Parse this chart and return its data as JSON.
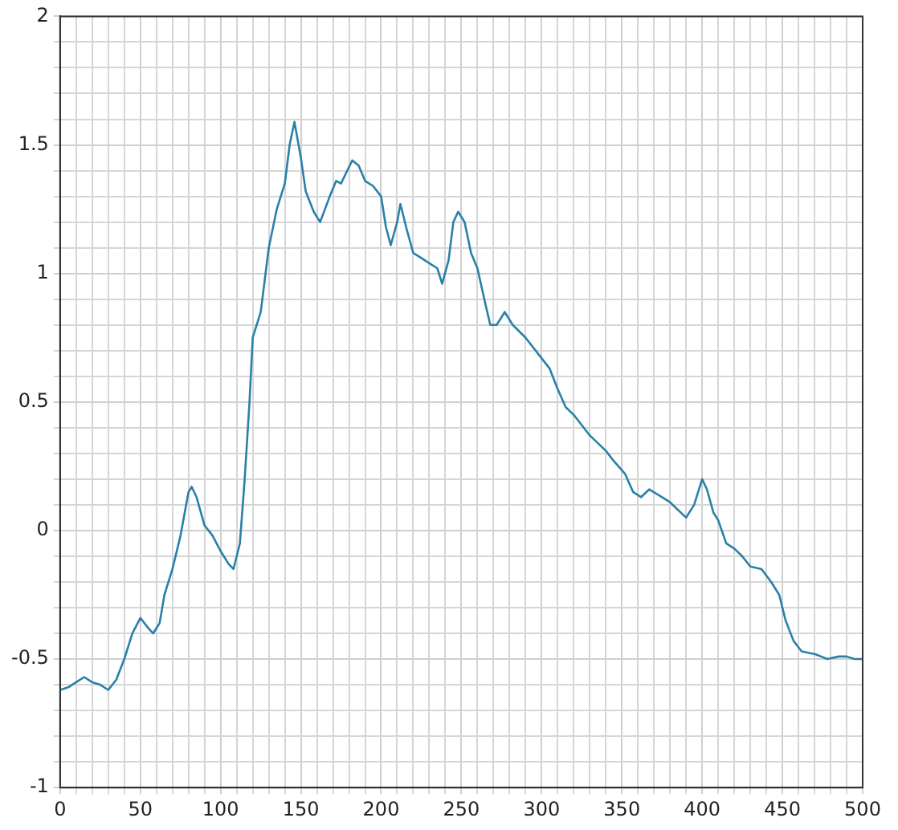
{
  "chart_data": {
    "type": "line",
    "x": [
      0,
      5,
      10,
      15,
      20,
      25,
      30,
      35,
      40,
      45,
      50,
      55,
      58,
      62,
      65,
      70,
      75,
      80,
      82,
      85,
      90,
      95,
      100,
      105,
      108,
      112,
      115,
      118,
      120,
      125,
      130,
      135,
      140,
      143,
      146,
      150,
      153,
      158,
      162,
      168,
      172,
      175,
      182,
      186,
      190,
      195,
      200,
      203,
      206,
      210,
      212,
      216,
      220,
      225,
      230,
      235,
      238,
      242,
      245,
      248,
      252,
      256,
      260,
      265,
      268,
      272,
      277,
      282,
      290,
      300,
      305,
      310,
      315,
      320,
      330,
      340,
      345,
      352,
      357,
      362,
      367,
      375,
      380,
      390,
      395,
      400,
      403,
      407,
      410,
      415,
      420,
      425,
      430,
      437,
      443,
      448,
      452,
      457,
      462,
      470,
      478,
      485,
      490,
      495,
      500
    ],
    "series": [
      {
        "color": "#2a80a8",
        "values": [
          -0.62,
          -0.61,
          -0.59,
          -0.57,
          -0.59,
          -0.6,
          -0.62,
          -0.58,
          -0.5,
          -0.4,
          -0.34,
          -0.38,
          -0.4,
          -0.36,
          -0.25,
          -0.15,
          -0.02,
          0.15,
          0.17,
          0.13,
          0.02,
          -0.02,
          -0.08,
          -0.13,
          -0.15,
          -0.05,
          0.2,
          0.5,
          0.75,
          0.85,
          1.1,
          1.25,
          1.35,
          1.5,
          1.59,
          1.45,
          1.32,
          1.24,
          1.2,
          1.3,
          1.36,
          1.35,
          1.44,
          1.42,
          1.36,
          1.34,
          1.3,
          1.18,
          1.11,
          1.2,
          1.27,
          1.17,
          1.08,
          1.06,
          1.04,
          1.02,
          0.96,
          1.05,
          1.2,
          1.24,
          1.2,
          1.08,
          1.02,
          0.88,
          0.8,
          0.8,
          0.85,
          0.8,
          0.75,
          0.67,
          0.63,
          0.55,
          0.48,
          0.45,
          0.37,
          0.31,
          0.27,
          0.22,
          0.15,
          0.13,
          0.16,
          0.13,
          0.11,
          0.05,
          0.1,
          0.2,
          0.16,
          0.07,
          0.04,
          -0.05,
          -0.07,
          -0.1,
          -0.14,
          -0.15,
          -0.2,
          -0.25,
          -0.35,
          -0.43,
          -0.47,
          -0.48,
          -0.5,
          -0.49,
          -0.49,
          -0.5,
          -0.5
        ]
      }
    ],
    "xlim": [
      0,
      500
    ],
    "xticks": [
      0,
      {
        "value": 10,
        "label": null
      },
      {
        "value": 20,
        "label": null
      },
      {
        "value": 30,
        "label": null
      },
      {
        "value": 40,
        "label": null
      },
      50,
      {
        "value": 60,
        "label": null
      },
      {
        "value": 70,
        "label": null
      },
      {
        "value": 80,
        "label": null
      },
      {
        "value": 90,
        "label": null
      },
      100,
      {
        "value": 110,
        "label": null
      },
      {
        "value": 120,
        "label": null
      },
      {
        "value": 130,
        "label": null
      },
      {
        "value": 140,
        "label": null
      },
      150,
      {
        "value": 160,
        "label": null
      },
      {
        "value": 170,
        "label": null
      },
      {
        "value": 180,
        "label": null
      },
      {
        "value": 190,
        "label": null
      },
      200,
      {
        "value": 210,
        "label": null
      },
      {
        "value": 220,
        "label": null
      },
      {
        "value": 230,
        "label": null
      },
      {
        "value": 240,
        "label": null
      },
      250,
      {
        "value": 260,
        "label": null
      },
      {
        "value": 270,
        "label": null
      },
      {
        "value": 280,
        "label": null
      },
      {
        "value": 290,
        "label": null
      },
      300,
      {
        "value": 310,
        "label": null
      },
      {
        "value": 320,
        "label": null
      },
      {
        "value": 330,
        "label": null
      },
      {
        "value": 340,
        "label": null
      },
      350,
      {
        "value": 360,
        "label": null
      },
      {
        "value": 370,
        "label": null
      },
      {
        "value": 380,
        "label": null
      },
      {
        "value": 390,
        "label": null
      },
      400,
      {
        "value": 410,
        "label": null
      },
      {
        "value": 420,
        "label": null
      },
      {
        "value": 430,
        "label": null
      },
      {
        "value": 440,
        "label": null
      },
      450,
      {
        "value": 460,
        "label": null
      },
      {
        "value": 470,
        "label": null
      },
      {
        "value": 480,
        "label": null
      },
      {
        "value": 490,
        "label": null
      },
      500
    ],
    "ylim": [
      -1,
      2
    ],
    "yticks": [
      -1,
      {
        "value": -0.9,
        "label": null
      },
      {
        "value": -0.8,
        "label": null
      },
      {
        "value": -0.7,
        "label": null
      },
      {
        "value": -0.6,
        "label": null
      },
      -0.5,
      {
        "value": -0.4,
        "label": null
      },
      {
        "value": -0.3,
        "label": null
      },
      {
        "value": -0.2,
        "label": null
      },
      {
        "value": -0.1,
        "label": null
      },
      0,
      {
        "value": 0.1,
        "label": null
      },
      {
        "value": 0.2,
        "label": null
      },
      {
        "value": 0.3,
        "label": null
      },
      {
        "value": 0.4,
        "label": null
      },
      0.5,
      {
        "value": 0.6,
        "label": null
      },
      {
        "value": 0.7,
        "label": null
      },
      {
        "value": 0.8,
        "label": null
      },
      {
        "value": 0.9,
        "label": null
      },
      1,
      {
        "value": 1.1,
        "label": null
      },
      {
        "value": 1.2,
        "label": null
      },
      {
        "value": 1.3,
        "label": null
      },
      {
        "value": 1.4,
        "label": null
      },
      1.5,
      {
        "value": 1.6,
        "label": null
      },
      {
        "value": 1.7,
        "label": null
      },
      {
        "value": 1.8,
        "label": null
      },
      {
        "value": 1.9,
        "label": null
      },
      2
    ],
    "grid": true,
    "legend": false,
    "marker": "none",
    "line_style": "solid"
  }
}
